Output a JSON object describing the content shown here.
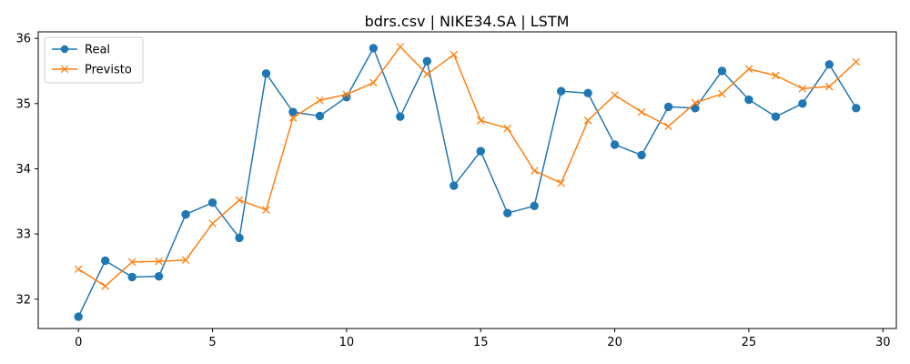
{
  "chart_data": {
    "type": "line",
    "title": "bdrs.csv | NIKE34.SA | LSTM",
    "xlabel": "",
    "ylabel": "",
    "x": [
      0,
      1,
      2,
      3,
      4,
      5,
      6,
      7,
      8,
      9,
      10,
      11,
      12,
      13,
      14,
      15,
      16,
      17,
      18,
      19,
      20,
      21,
      22,
      23,
      24,
      25,
      26,
      27,
      28,
      29
    ],
    "xlim": [
      -1.5,
      30.5
    ],
    "ylim": [
      31.55,
      36.1
    ],
    "x_ticks": [
      0,
      5,
      10,
      15,
      20,
      25,
      30
    ],
    "y_ticks": [
      32,
      33,
      34,
      35,
      36
    ],
    "grid": false,
    "legend_position": "top-left",
    "series": [
      {
        "name": "Real",
        "color": "#1f77b4",
        "marker": "circle",
        "values": [
          31.73,
          32.59,
          32.34,
          32.35,
          33.3,
          33.48,
          32.94,
          35.46,
          34.87,
          34.81,
          35.1,
          35.85,
          34.8,
          35.65,
          33.74,
          34.27,
          33.32,
          33.43,
          35.19,
          35.16,
          34.37,
          34.21,
          34.95,
          34.93,
          35.5,
          35.06,
          34.8,
          35.0,
          35.6,
          34.93
        ]
      },
      {
        "name": "Previsto",
        "color": "#ff7f0e",
        "marker": "x",
        "values": [
          32.46,
          32.2,
          32.57,
          32.58,
          32.6,
          33.16,
          33.52,
          33.37,
          34.78,
          35.05,
          35.14,
          35.32,
          35.87,
          35.45,
          35.75,
          34.74,
          34.62,
          33.97,
          33.78,
          34.74,
          35.13,
          34.87,
          34.65,
          35.01,
          35.15,
          35.53,
          35.43,
          35.23,
          35.26,
          35.64
        ]
      }
    ]
  }
}
